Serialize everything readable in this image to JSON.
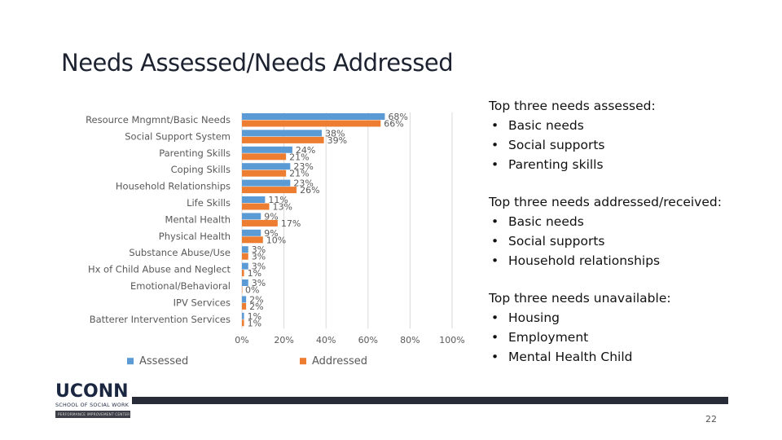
{
  "slide": {
    "title": "Needs Assessed/Needs Addressed",
    "page_number": "22"
  },
  "notes": [
    {
      "heading": "Top three needs assessed:",
      "items": [
        "Basic needs",
        "Social supports",
        "Parenting skills"
      ]
    },
    {
      "heading": "Top three needs addressed/received:",
      "items": [
        "Basic needs",
        "Social supports",
        "Household relationships"
      ]
    },
    {
      "heading": "Top three needs unavailable:",
      "items": [
        "Housing",
        "Employment",
        "Mental Health Child"
      ]
    }
  ],
  "logo": {
    "wordmark": "UCONN",
    "subtitle": "SCHOOL OF SOCIAL WORK",
    "bar_text": "PERFORMANCE IMPROVEMENT CENTER"
  },
  "chart_data": {
    "type": "bar",
    "orientation": "horizontal",
    "categories": [
      "Resource Mngmnt/Basic Needs",
      "Social Support System",
      "Parenting Skills",
      "Coping Skills",
      "Household Relationships",
      "Life Skills",
      "Mental Health",
      "Physical Health",
      "Substance Abuse/Use",
      "Hx of Child Abuse and Neglect",
      "Emotional/Behavioral",
      "IPV Services",
      "Batterer Intervention Services"
    ],
    "series": [
      {
        "name": "Assessed",
        "color": "#5b9bd5",
        "values": [
          68,
          38,
          24,
          23,
          23,
          11,
          9,
          9,
          3,
          3,
          3,
          2,
          1
        ],
        "labels": [
          "68%",
          "38%",
          "24%",
          "23%",
          "23%",
          "11%",
          "9%",
          "9%",
          "3%",
          "3%",
          "3%",
          "2%",
          "1%"
        ]
      },
      {
        "name": "Addressed",
        "color": "#ed7d31",
        "values": [
          66,
          39,
          21,
          21,
          26,
          13,
          17,
          10,
          3,
          1,
          0,
          2,
          1
        ],
        "labels": [
          "66%",
          "39%",
          "21%",
          "21%",
          "26%",
          "13%",
          "17%",
          "10%",
          "3%",
          "1%",
          "0%",
          "2%",
          "1%"
        ]
      }
    ],
    "xlim": [
      0,
      100
    ],
    "ticks": [
      0,
      20,
      40,
      60,
      80,
      100
    ],
    "tick_labels": [
      "0%",
      "20%",
      "40%",
      "60%",
      "80%",
      "100%"
    ],
    "legend_position": "bottom",
    "grid": true
  }
}
